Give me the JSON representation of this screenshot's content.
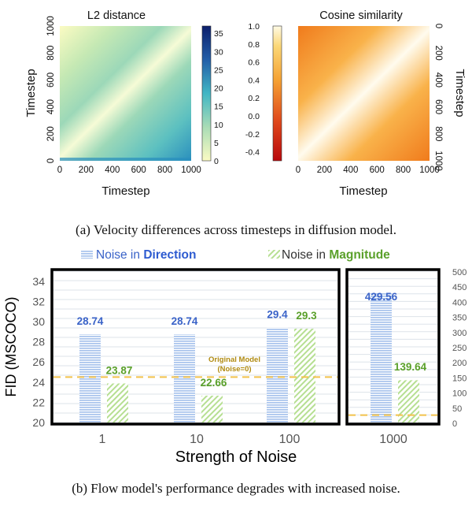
{
  "figure_a": {
    "caption": "(a) Velocity differences across timesteps in diffusion model.",
    "l2_title": "L2 distance",
    "cos_title": "Cosine similarity",
    "axis_label": "Timestep",
    "colors": {
      "l2_low": "#fbfbc3",
      "l2_mid": "#39b3c0",
      "l2_high": "#152780",
      "cos_low": "#c90f0f",
      "cos_mid": "#f28f1f",
      "cos_high": "#fff7df"
    }
  },
  "figure_b": {
    "caption": "(b) Flow model's performance degrades with increased noise.",
    "legend_direction_prefix": "Noise in ",
    "legend_direction_word": "Direction",
    "legend_magnitude_prefix": "Noise in ",
    "legend_magnitude_word": "Magnitude",
    "baseline_label_line1": "Original Model",
    "baseline_label_line2": "(Noise=0)",
    "colors": {
      "direction": "#a8c3ec",
      "direction_text": "#3a63c8",
      "magnitude": "#b6df92",
      "magnitude_text": "#5aa02a",
      "baseline": "#f2c24c",
      "baseline_text": "#b08a10"
    }
  },
  "chart_data": [
    {
      "type": "heatmap",
      "title": "L2 distance",
      "xlabel": "Timestep",
      "ylabel": "Timestep",
      "x_ticks": [
        0,
        200,
        400,
        600,
        800,
        1000
      ],
      "y_ticks": [
        0,
        200,
        400,
        600,
        800,
        1000
      ],
      "xlim": [
        0,
        1000
      ],
      "ylim": [
        1000,
        0
      ],
      "colorbar_ticks": [
        0,
        5,
        10,
        15,
        20,
        25,
        30,
        35
      ],
      "colorbar_range": [
        0,
        37
      ],
      "colormap": "YlGnBu"
    },
    {
      "type": "heatmap",
      "title": "Cosine similarity",
      "xlabel": "Timestep",
      "ylabel": "Timestep",
      "x_ticks": [
        0,
        200,
        400,
        600,
        800,
        1000
      ],
      "y_ticks": [
        0,
        200,
        400,
        600,
        800,
        1000
      ],
      "xlim": [
        0,
        1000
      ],
      "ylim": [
        0,
        1000
      ],
      "colorbar_ticks": [
        -0.4,
        -0.2,
        0.0,
        0.2,
        0.4,
        0.6,
        0.8,
        1.0
      ],
      "colorbar_range": [
        -0.5,
        1.0
      ],
      "colormap": "YlOrRd"
    },
    {
      "type": "bar",
      "xlabel": "Strength of Noise",
      "ylabel": "FID (MSCOCO)",
      "categories": [
        "1",
        "10",
        "100"
      ],
      "series": [
        {
          "name": "Noise in Direction",
          "values": [
            28.74,
            28.74,
            29.4
          ],
          "labels": [
            "28.74",
            "28.74",
            "29.4"
          ]
        },
        {
          "name": "Noise in Magnitude",
          "values": [
            23.87,
            22.66,
            29.3
          ],
          "labels": [
            "23.87",
            "22.66",
            "29.3"
          ]
        }
      ],
      "baseline": 24.5,
      "ylim": [
        20,
        35
      ],
      "yticks": [
        20,
        22,
        24,
        26,
        28,
        30,
        32,
        34
      ]
    },
    {
      "type": "bar",
      "categories": [
        "1000"
      ],
      "series": [
        {
          "name": "Noise in Direction",
          "values": [
            429.56
          ],
          "labels": [
            "429.56"
          ]
        },
        {
          "name": "Noise in Magnitude",
          "values": [
            139.64
          ],
          "labels": [
            "139.64"
          ]
        }
      ],
      "baseline": 24.5,
      "ylim": [
        0,
        500
      ],
      "yticks": [
        0,
        50,
        100,
        150,
        200,
        250,
        300,
        350,
        400,
        450,
        500
      ]
    }
  ]
}
